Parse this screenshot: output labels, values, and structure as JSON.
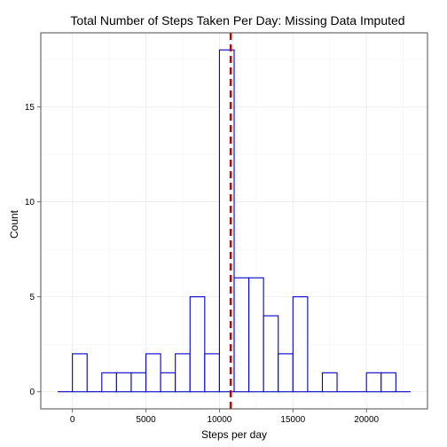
{
  "chart_data": {
    "type": "bar",
    "subtype": "histogram",
    "title": "Total Number of Steps Taken Per Day: Missing Data Imputed",
    "xlabel": "Steps per day",
    "ylabel": "Count",
    "xlim": [
      -2150,
      24150
    ],
    "ylim": [
      -0.9,
      18.9
    ],
    "x_ticks": [
      0,
      5000,
      10000,
      15000,
      20000
    ],
    "y_ticks": [
      0,
      5,
      10,
      15
    ],
    "x_tick_labels": [
      "0",
      "5000",
      "10000",
      "15000",
      "20000"
    ],
    "y_tick_labels": [
      "0",
      "5",
      "10",
      "15"
    ],
    "grid": true,
    "bin_width": 1000,
    "bins": [
      {
        "x0": -1000,
        "x1": 0,
        "count": 0
      },
      {
        "x0": 0,
        "x1": 1000,
        "count": 2
      },
      {
        "x0": 1000,
        "x1": 2000,
        "count": 0
      },
      {
        "x0": 2000,
        "x1": 3000,
        "count": 1
      },
      {
        "x0": 3000,
        "x1": 4000,
        "count": 1
      },
      {
        "x0": 4000,
        "x1": 5000,
        "count": 1
      },
      {
        "x0": 5000,
        "x1": 6000,
        "count": 2
      },
      {
        "x0": 6000,
        "x1": 7000,
        "count": 1
      },
      {
        "x0": 7000,
        "x1": 8000,
        "count": 2
      },
      {
        "x0": 8000,
        "x1": 9000,
        "count": 5
      },
      {
        "x0": 9000,
        "x1": 10000,
        "count": 2
      },
      {
        "x0": 10000,
        "x1": 11000,
        "count": 18
      },
      {
        "x0": 11000,
        "x1": 12000,
        "count": 6
      },
      {
        "x0": 12000,
        "x1": 13000,
        "count": 6
      },
      {
        "x0": 13000,
        "x1": 14000,
        "count": 4
      },
      {
        "x0": 14000,
        "x1": 15000,
        "count": 2
      },
      {
        "x0": 15000,
        "x1": 16000,
        "count": 5
      },
      {
        "x0": 16000,
        "x1": 17000,
        "count": 0
      },
      {
        "x0": 17000,
        "x1": 18000,
        "count": 1
      },
      {
        "x0": 18000,
        "x1": 19000,
        "count": 0
      },
      {
        "x0": 19000,
        "x1": 20000,
        "count": 0
      },
      {
        "x0": 20000,
        "x1": 21000,
        "count": 1
      },
      {
        "x0": 21000,
        "x1": 22000,
        "count": 1
      },
      {
        "x0": 22000,
        "x1": 23000,
        "count": 0
      }
    ],
    "reference_line": {
      "x": 10766,
      "style": "dashed"
    },
    "colors": {
      "bar_outline": "#0000cc",
      "bar_fill": "#ffffff",
      "reference_line": "#cc0000",
      "grid": "#ebebeb",
      "panel_border": "#4d4d4d"
    }
  }
}
